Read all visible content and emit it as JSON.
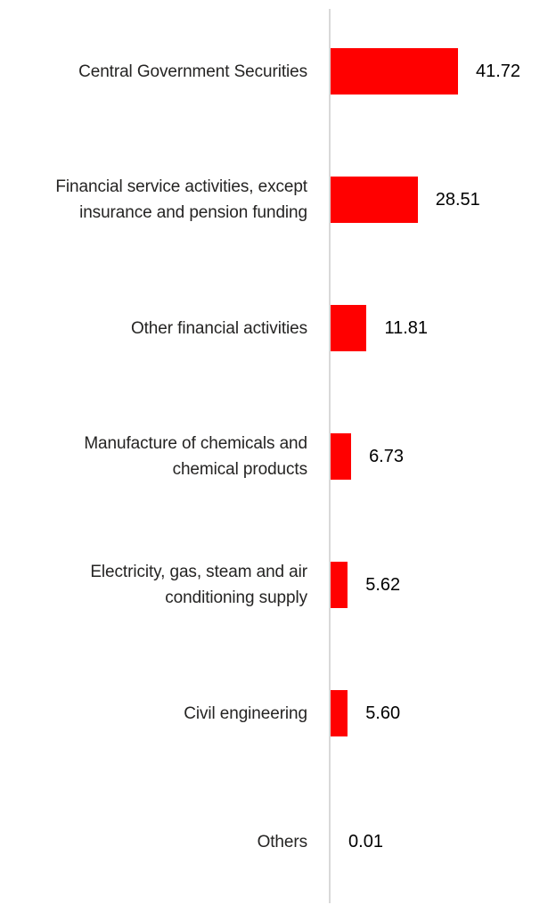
{
  "chart_data": {
    "type": "bar",
    "orientation": "horizontal",
    "title": "",
    "xlabel": "",
    "ylabel": "",
    "grid": false,
    "legend": false,
    "xlim": [
      0,
      45
    ],
    "bar_color": "#ff0000",
    "axis_line_color": "#d9d9d9",
    "label_color": "#252423",
    "value_color": "#000000",
    "categories": [
      "Central Government Securities",
      "Financial service activities, except\ninsurance and pension funding",
      "Other financial activities",
      "Manufacture of chemicals and\nchemical products",
      "Electricity, gas, steam and air\nconditioning supply",
      "Civil engineering",
      "Others"
    ],
    "values": [
      41.72,
      28.51,
      11.81,
      6.73,
      5.62,
      5.6,
      0.01
    ],
    "value_labels": [
      "41.72",
      "28.51",
      "11.81",
      "6.73",
      "5.62",
      "5.60",
      "0.01"
    ]
  }
}
